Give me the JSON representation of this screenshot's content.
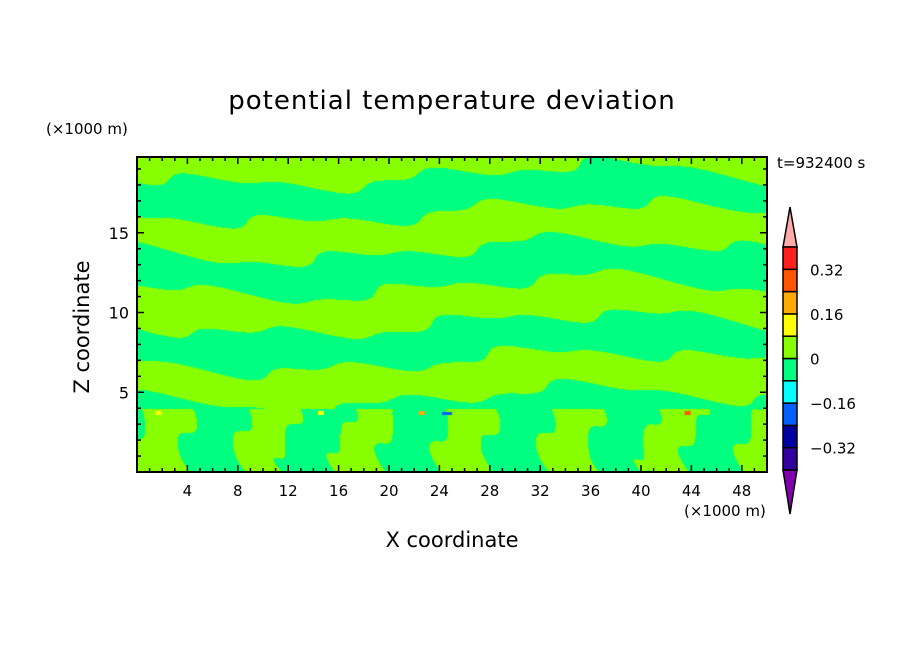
{
  "chart_data": {
    "type": "heatmap",
    "title": "potential temperature deviation",
    "xlabel": "X coordinate",
    "ylabel": "Z coordinate",
    "x_unit": "(×1000 m)",
    "y_unit": "(×1000 m)",
    "time_label": "t=932400 s",
    "xlim": [
      0,
      50
    ],
    "ylim": [
      0,
      19.75
    ],
    "xticks": [
      4,
      8,
      12,
      16,
      20,
      24,
      28,
      32,
      36,
      40,
      44,
      48
    ],
    "yticks": [
      5,
      10,
      15
    ],
    "colorbar": {
      "levels": [
        -0.4,
        -0.32,
        -0.24,
        -0.16,
        -0.08,
        0,
        0.08,
        0.16,
        0.24,
        0.32,
        0.4
      ],
      "tick_labels": [
        "0.32",
        "0.16",
        "0",
        "−0.16",
        "−0.32"
      ],
      "tick_values": [
        0.32,
        0.16,
        0,
        -0.16,
        -0.32
      ],
      "colors": [
        "#3300a0",
        "#0000a0",
        "#0060ff",
        "#00ffff",
        "#00ff80",
        "#88ff00",
        "#ffff00",
        "#ffaa00",
        "#ff5500",
        "#ff2020"
      ],
      "under_color": "#8000b0",
      "over_color": "#ffaaaa",
      "extend": "both"
    },
    "field_note_values": {
      "dominant_range": [
        -0.08,
        0.08
      ]
    }
  }
}
